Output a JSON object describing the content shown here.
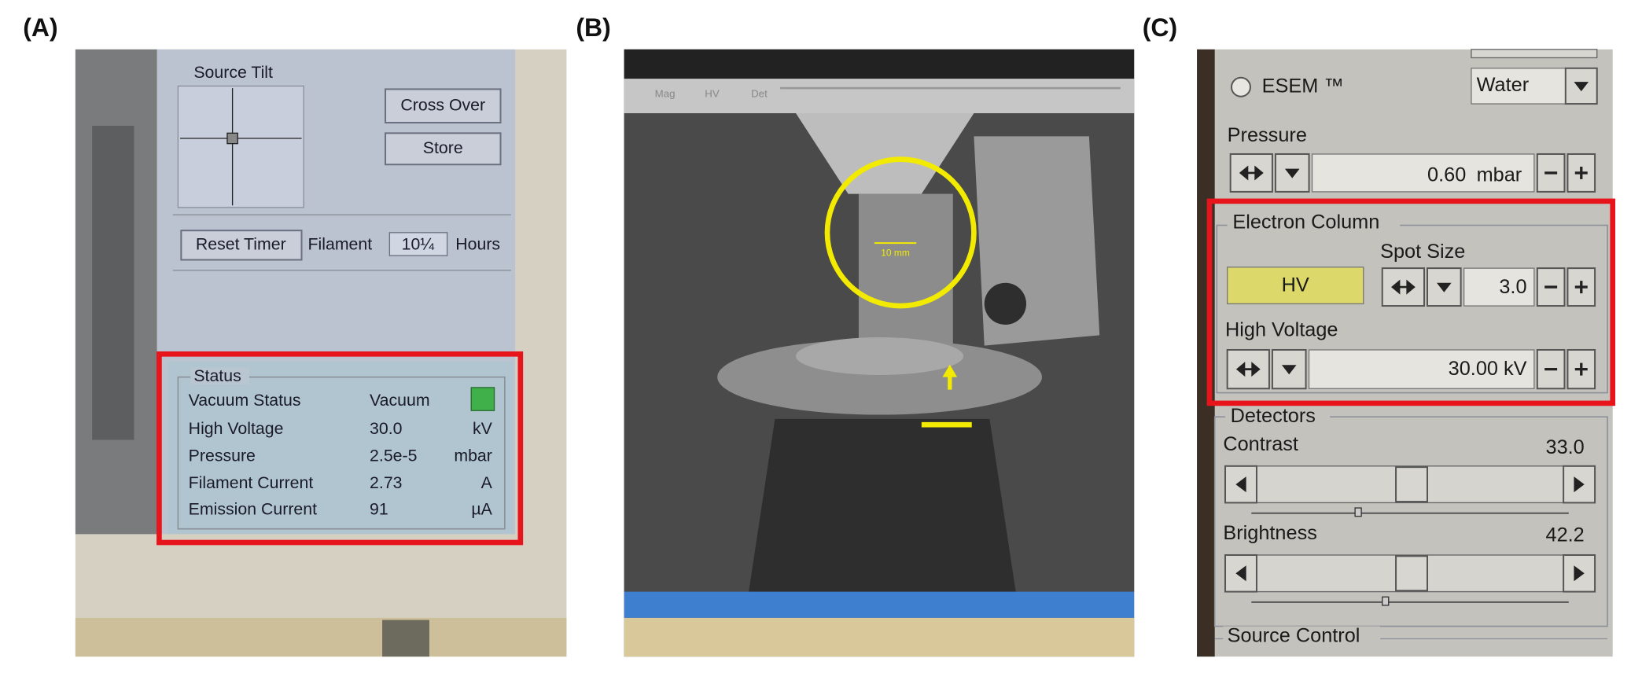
{
  "panels": [
    {
      "label": "(A)",
      "source_tilt": "Source Tilt",
      "buttons": [
        "Cross Over",
        "Store",
        "Reset Timer"
      ],
      "filament": "Filament",
      "filament_hours": "10¼",
      "hours": "Hours",
      "status": {
        "title": "Status",
        "rows": [
          [
            "Vacuum Status",
            "Vacuum"
          ],
          [
            "High Voltage",
            "30.0",
            "kV"
          ],
          [
            "Pressure",
            "2.5e-5",
            "mbar"
          ],
          [
            "Filament Current",
            "2.73",
            "A"
          ],
          [
            "Emission Current",
            "91",
            "µA"
          ]
        ]
      }
    },
    {
      "label": "(B)",
      "header": [
        "Mag",
        "HV",
        "Det"
      ],
      "scale_label": "10 mm"
    },
    {
      "label": "(C)",
      "mode": "ESEM ™",
      "gas": "Water",
      "pressure": {
        "label": "Pressure",
        "value": "0.60",
        "unit": "mbar"
      },
      "electron_column": {
        "title": "Electron Column",
        "hv_button": "HV",
        "spot_size": {
          "label": "Spot Size",
          "value": "3.0"
        },
        "high_voltage": {
          "label": "High Voltage",
          "value": "30.00 kV"
        }
      },
      "detectors": {
        "title": "Detectors",
        "contrast": {
          "label": "Contrast",
          "value": "33.0"
        },
        "brightness": {
          "label": "Brightness",
          "value": "42.2"
        }
      },
      "source_control": "Source Control"
    }
  ]
}
